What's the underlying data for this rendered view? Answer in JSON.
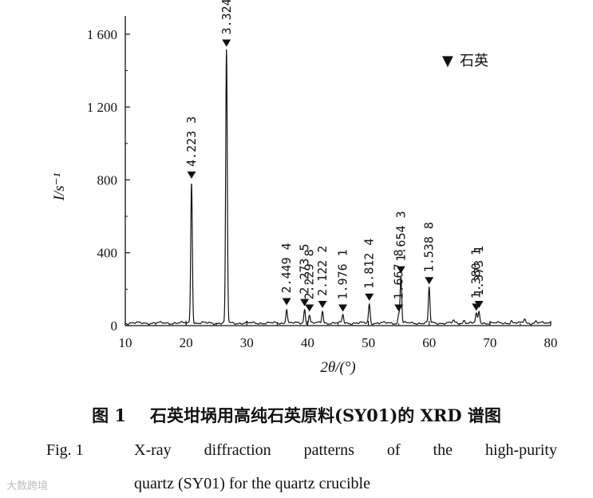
{
  "chart_data": {
    "type": "line",
    "xlabel": "2θ/(°)",
    "ylabel": "I/s⁻¹",
    "xlim": [
      10,
      80
    ],
    "ylim": [
      0,
      1700
    ],
    "xticks": [
      10,
      20,
      30,
      40,
      50,
      60,
      70,
      80
    ],
    "yticks": [
      0,
      400,
      800,
      1200,
      1600
    ],
    "ytick_labels": [
      "0",
      "400",
      "800",
      "1 200",
      "1 600"
    ],
    "series": [
      {
        "name": "石英",
        "peaks": [
          {
            "two_theta": 20.9,
            "intensity": 775,
            "d_label": "4.223 3"
          },
          {
            "two_theta": 26.65,
            "intensity": 1500,
            "d_label": "3.324 3"
          },
          {
            "two_theta": 36.55,
            "intensity": 80,
            "d_label": "2.449 4"
          },
          {
            "two_theta": 39.5,
            "intensity": 75,
            "d_label": "2.273 5"
          },
          {
            "two_theta": 40.3,
            "intensity": 45,
            "d_label": "2.229 8"
          },
          {
            "two_theta": 42.45,
            "intensity": 65,
            "d_label": "2.122 2"
          },
          {
            "two_theta": 45.8,
            "intensity": 45,
            "d_label": "1.976 1"
          },
          {
            "two_theta": 50.15,
            "intensity": 105,
            "d_label": "1.812 4"
          },
          {
            "two_theta": 55.0,
            "intensity": 45,
            "d_label": "1.667 8"
          },
          {
            "two_theta": 55.35,
            "intensity": 255,
            "d_label": "1.654 3"
          },
          {
            "two_theta": 60.0,
            "intensity": 195,
            "d_label": "1.538 8"
          },
          {
            "two_theta": 67.75,
            "intensity": 50,
            "d_label": "1.380 1"
          },
          {
            "two_theta": 68.2,
            "intensity": 65,
            "d_label": "1.373 1"
          }
        ]
      }
    ],
    "legend": {
      "symbol": "▼",
      "label": "石英",
      "position": "top-right"
    }
  },
  "caption": {
    "cn_fig": "图 1",
    "cn_text": "石英坩埚用高纯石英原料(SY01)的 XRD 谱图",
    "en_fig": "Fig. 1",
    "en_line1": "X-ray diffraction patterns of the high-purity",
    "en_line2": "quartz (SY01) for the quartz crucible"
  },
  "watermark": "大数跨境"
}
